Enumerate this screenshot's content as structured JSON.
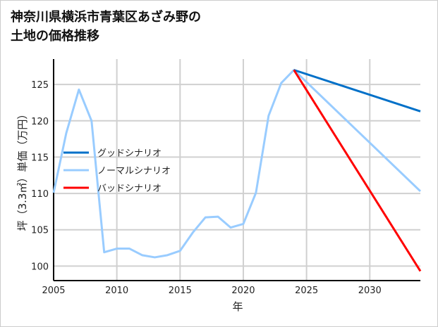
{
  "chart_data": {
    "type": "line",
    "title": "神奈川県横浜市青葉区あざみ野の\n土地の価格推移",
    "xlabel": "年",
    "ylabel": "坪（3.3㎡）単価（万円）",
    "xlim": [
      2005,
      2034
    ],
    "ylim": [
      98,
      128.5
    ],
    "xticks": [
      2005,
      2010,
      2015,
      2020,
      2025,
      2030
    ],
    "yticks": [
      100,
      105,
      110,
      115,
      120,
      125
    ],
    "grid": true,
    "legend_position": "center-left",
    "series": [
      {
        "name": "グッドシナリオ",
        "color": "#0070c8",
        "x": [
          2024,
          2034
        ],
        "values": [
          127.0,
          121.3
        ]
      },
      {
        "name": "ノーマルシナリオ",
        "color": "#99ccff",
        "x": [
          2005,
          2006,
          2007,
          2008,
          2009,
          2010,
          2011,
          2012,
          2013,
          2014,
          2015,
          2016,
          2017,
          2018,
          2019,
          2020,
          2021,
          2022,
          2023,
          2024,
          2034
        ],
        "values": [
          110.1,
          118.3,
          124.3,
          120.0,
          101.9,
          102.4,
          102.4,
          101.5,
          101.2,
          101.5,
          102.1,
          104.6,
          106.7,
          106.8,
          105.3,
          105.8,
          110.1,
          120.7,
          125.2,
          127.0,
          110.3
        ]
      },
      {
        "name": "バッドシナリオ",
        "color": "#ff0000",
        "x": [
          2024,
          2034
        ],
        "values": [
          127.0,
          99.3
        ]
      }
    ]
  }
}
